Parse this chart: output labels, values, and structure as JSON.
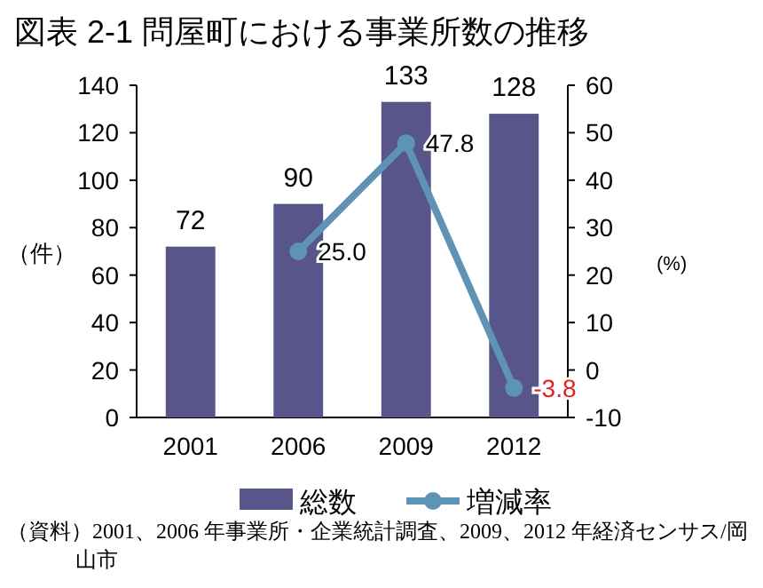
{
  "chart_data": {
    "type": "bar",
    "title": "図表 2-1  問屋町における事業所数の推移",
    "categories": [
      "2001",
      "2006",
      "2009",
      "2012"
    ],
    "series": [
      {
        "name": "総数",
        "color": "#57558a",
        "values": [
          72,
          90,
          133,
          128
        ],
        "value_labels": [
          "72",
          "90",
          "133",
          "128"
        ]
      },
      {
        "name": "増減率",
        "type": "line",
        "axis": "y2",
        "color": "#5f93b5",
        "values": [
          null,
          25.0,
          47.8,
          -3.8
        ],
        "value_labels": [
          null,
          "25.0",
          "47.8",
          "-3.8"
        ]
      }
    ],
    "ylabel": "（件）",
    "y2label": "(%)",
    "ylim": [
      0,
      140
    ],
    "yticks": [
      0,
      20,
      40,
      60,
      80,
      100,
      120,
      140
    ],
    "y2lim": [
      -10,
      60
    ],
    "y2ticks": [
      -10,
      0,
      10,
      20,
      30,
      40,
      50,
      60
    ],
    "marker": "circle",
    "grid": false,
    "legend": "bottom",
    "annotations": [
      "（資料）2001、2006 年事業所・企業統計調査、2009、2012 年経済センサス/岡山市"
    ]
  }
}
